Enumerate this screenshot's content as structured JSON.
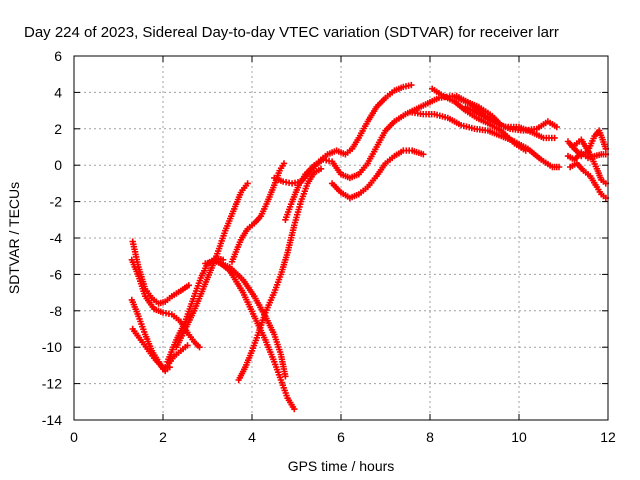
{
  "chart_data": {
    "type": "scatter",
    "title": "Day 224 of 2023, Sidereal Day-to-day VTEC variation (SDTVAR) for receiver larr",
    "xlabel": "GPS time / hours",
    "ylabel": "SDTVAR / TECUs",
    "xlim": [
      0,
      12
    ],
    "ylim": [
      -14,
      6
    ],
    "x_ticks": [
      "0",
      "2",
      "4",
      "6",
      "8",
      "10",
      "12"
    ],
    "y_ticks": [
      "6",
      "4",
      "2",
      "0",
      "-2",
      "-4",
      "-6",
      "-8",
      "-10",
      "-12",
      "-14"
    ],
    "x_tick_values": [
      0,
      2,
      4,
      6,
      8,
      10,
      12
    ],
    "y_tick_values": [
      6,
      4,
      2,
      0,
      -2,
      -4,
      -6,
      -8,
      -10,
      -12,
      -14
    ],
    "grid": true,
    "marker": "+",
    "color": "#ff0000",
    "series": [
      {
        "points": [
          [
            1.32,
            -4.2
          ],
          [
            1.45,
            -5.6
          ],
          [
            1.6,
            -6.8
          ],
          [
            1.75,
            -7.3
          ],
          [
            1.9,
            -7.6
          ],
          [
            2.05,
            -7.5
          ],
          [
            2.2,
            -7.2
          ],
          [
            2.4,
            -6.9
          ],
          [
            2.58,
            -6.6
          ]
        ]
      },
      {
        "points": [
          [
            1.3,
            -5.2
          ],
          [
            1.45,
            -6.1
          ],
          [
            1.6,
            -7.2
          ],
          [
            1.8,
            -7.9
          ],
          [
            2.0,
            -8.1
          ],
          [
            2.2,
            -8.2
          ],
          [
            2.4,
            -8.6
          ],
          [
            2.55,
            -9.2
          ],
          [
            2.7,
            -9.7
          ],
          [
            2.82,
            -10.0
          ]
        ]
      },
      {
        "points": [
          [
            1.3,
            -7.4
          ],
          [
            1.45,
            -8.3
          ],
          [
            1.6,
            -9.3
          ],
          [
            1.75,
            -10.2
          ],
          [
            1.9,
            -10.8
          ],
          [
            2.0,
            -11.2
          ],
          [
            2.1,
            -11.0
          ],
          [
            2.25,
            -10.5
          ],
          [
            2.4,
            -10.2
          ],
          [
            2.55,
            -9.9
          ]
        ]
      },
      {
        "points": [
          [
            1.32,
            -9.0
          ],
          [
            1.5,
            -9.6
          ],
          [
            1.65,
            -10.1
          ],
          [
            1.8,
            -10.6
          ],
          [
            1.95,
            -11.0
          ],
          [
            2.05,
            -11.3
          ],
          [
            2.15,
            -11.1
          ]
        ]
      },
      {
        "points": [
          [
            2.1,
            -10.8
          ],
          [
            2.3,
            -9.6
          ],
          [
            2.5,
            -8.6
          ],
          [
            2.7,
            -7.2
          ],
          [
            2.85,
            -6.2
          ],
          [
            3.0,
            -5.4
          ],
          [
            3.2,
            -5.1
          ],
          [
            3.35,
            -5.2
          ]
        ]
      },
      {
        "points": [
          [
            2.3,
            -10.0
          ],
          [
            2.5,
            -9.0
          ],
          [
            2.7,
            -8.0
          ],
          [
            2.9,
            -6.8
          ],
          [
            3.05,
            -5.9
          ],
          [
            3.2,
            -5.0
          ],
          [
            3.4,
            -3.6
          ],
          [
            3.6,
            -2.4
          ],
          [
            3.75,
            -1.5
          ],
          [
            3.9,
            -1.0
          ]
        ]
      },
      {
        "points": [
          [
            2.95,
            -5.4
          ],
          [
            3.2,
            -5.3
          ],
          [
            3.5,
            -5.6
          ],
          [
            3.8,
            -6.3
          ],
          [
            4.05,
            -7.2
          ],
          [
            4.3,
            -8.3
          ],
          [
            4.5,
            -9.3
          ],
          [
            4.65,
            -10.4
          ],
          [
            4.75,
            -11.6
          ]
        ]
      },
      {
        "points": [
          [
            3.25,
            -5.3
          ],
          [
            3.5,
            -5.8
          ],
          [
            3.8,
            -7.0
          ],
          [
            4.05,
            -8.3
          ],
          [
            4.3,
            -9.6
          ],
          [
            4.5,
            -10.8
          ],
          [
            4.65,
            -11.8
          ],
          [
            4.8,
            -12.8
          ],
          [
            4.95,
            -13.4
          ]
        ]
      },
      {
        "points": [
          [
            3.7,
            -11.8
          ],
          [
            3.85,
            -11.1
          ],
          [
            4.0,
            -10.2
          ],
          [
            4.15,
            -9.2
          ],
          [
            4.3,
            -8.1
          ],
          [
            4.5,
            -7.0
          ],
          [
            4.65,
            -6.0
          ],
          [
            4.8,
            -4.8
          ],
          [
            4.95,
            -3.3
          ],
          [
            5.1,
            -2.0
          ],
          [
            5.25,
            -1.0
          ],
          [
            5.4,
            -0.4
          ],
          [
            5.55,
            -0.2
          ]
        ]
      },
      {
        "points": [
          [
            3.55,
            -5.3
          ],
          [
            3.75,
            -4.1
          ],
          [
            3.9,
            -3.5
          ],
          [
            4.05,
            -3.2
          ],
          [
            4.2,
            -2.8
          ],
          [
            4.35,
            -2.0
          ],
          [
            4.5,
            -1.1
          ],
          [
            4.62,
            -0.3
          ],
          [
            4.72,
            0.1
          ]
        ]
      },
      {
        "points": [
          [
            4.5,
            -0.7
          ],
          [
            4.7,
            -0.9
          ],
          [
            4.9,
            -1.0
          ],
          [
            5.1,
            -0.9
          ],
          [
            5.3,
            -0.4
          ],
          [
            5.5,
            0.2
          ],
          [
            5.7,
            0.6
          ],
          [
            5.9,
            0.8
          ],
          [
            6.1,
            0.6
          ],
          [
            6.25,
            0.9
          ],
          [
            6.4,
            1.5
          ],
          [
            6.6,
            2.4
          ],
          [
            6.8,
            3.2
          ],
          [
            7.0,
            3.7
          ],
          [
            7.2,
            4.1
          ],
          [
            7.4,
            4.3
          ],
          [
            7.58,
            4.4
          ]
        ]
      },
      {
        "points": [
          [
            4.75,
            -3.0
          ],
          [
            4.9,
            -2.0
          ],
          [
            5.05,
            -1.1
          ],
          [
            5.2,
            -0.5
          ],
          [
            5.4,
            0.0
          ],
          [
            5.6,
            0.3
          ],
          [
            5.8,
            0.2
          ],
          [
            6.0,
            -0.5
          ],
          [
            6.2,
            -0.7
          ],
          [
            6.4,
            -0.5
          ],
          [
            6.6,
            0.1
          ],
          [
            6.8,
            1.0
          ],
          [
            7.0,
            1.9
          ],
          [
            7.2,
            2.4
          ],
          [
            7.45,
            2.8
          ],
          [
            7.7,
            3.1
          ],
          [
            7.95,
            3.4
          ],
          [
            8.2,
            3.7
          ],
          [
            8.5,
            3.8
          ],
          [
            8.8,
            3.5
          ],
          [
            9.1,
            3.2
          ],
          [
            9.4,
            2.7
          ],
          [
            9.6,
            2.2
          ]
        ]
      },
      {
        "points": [
          [
            5.8,
            -1.0
          ],
          [
            6.0,
            -1.5
          ],
          [
            6.2,
            -1.8
          ],
          [
            6.4,
            -1.6
          ],
          [
            6.6,
            -1.2
          ],
          [
            6.8,
            -0.6
          ],
          [
            7.0,
            0.1
          ],
          [
            7.2,
            0.5
          ],
          [
            7.4,
            0.8
          ],
          [
            7.6,
            0.8
          ],
          [
            7.85,
            0.6
          ]
        ]
      },
      {
        "points": [
          [
            7.6,
            2.9
          ],
          [
            7.85,
            2.8
          ],
          [
            8.1,
            2.8
          ],
          [
            8.4,
            2.6
          ],
          [
            8.7,
            2.2
          ],
          [
            9.0,
            2.0
          ],
          [
            9.3,
            1.9
          ],
          [
            9.6,
            1.6
          ],
          [
            9.9,
            1.3
          ],
          [
            10.2,
            0.9
          ],
          [
            10.5,
            0.3
          ],
          [
            10.75,
            -0.1
          ],
          [
            10.9,
            -0.1
          ]
        ]
      },
      {
        "points": [
          [
            8.05,
            4.2
          ],
          [
            8.3,
            3.8
          ],
          [
            8.55,
            3.5
          ],
          [
            8.8,
            3.0
          ],
          [
            9.05,
            2.6
          ],
          [
            9.3,
            2.3
          ],
          [
            9.6,
            1.9
          ],
          [
            9.9,
            1.2
          ],
          [
            10.15,
            0.8
          ]
        ]
      },
      {
        "points": [
          [
            8.6,
            3.8
          ],
          [
            8.9,
            3.4
          ],
          [
            9.2,
            2.8
          ],
          [
            9.5,
            2.3
          ],
          [
            9.8,
            2.0
          ],
          [
            10.1,
            1.9
          ],
          [
            10.4,
            2.0
          ],
          [
            10.65,
            2.4
          ],
          [
            10.85,
            2.1
          ]
        ]
      },
      {
        "points": [
          [
            8.8,
            3.2
          ],
          [
            9.1,
            2.8
          ],
          [
            9.4,
            2.4
          ],
          [
            9.7,
            2.1
          ],
          [
            10.0,
            2.1
          ],
          [
            10.3,
            1.8
          ],
          [
            10.55,
            1.5
          ],
          [
            10.8,
            1.5
          ]
        ]
      },
      {
        "points": [
          [
            11.1,
            1.3
          ],
          [
            11.25,
            0.9
          ],
          [
            11.4,
            0.5
          ],
          [
            11.55,
            0.8
          ],
          [
            11.7,
            1.6
          ],
          [
            11.8,
            1.9
          ],
          [
            11.88,
            1.4
          ],
          [
            11.95,
            0.9
          ]
        ]
      },
      {
        "points": [
          [
            11.1,
            0.5
          ],
          [
            11.25,
            0.3
          ],
          [
            11.4,
            0.7
          ],
          [
            11.55,
            0.4
          ],
          [
            11.7,
            0.5
          ],
          [
            11.85,
            0.6
          ],
          [
            11.95,
            0.6
          ]
        ]
      },
      {
        "points": [
          [
            11.15,
            -0.1
          ],
          [
            11.3,
            0.1
          ],
          [
            11.45,
            -0.3
          ],
          [
            11.6,
            -0.6
          ],
          [
            11.75,
            -1.2
          ],
          [
            11.85,
            -1.6
          ],
          [
            11.95,
            -1.8
          ]
        ]
      },
      {
        "points": [
          [
            11.2,
            1.0
          ],
          [
            11.4,
            1.4
          ],
          [
            11.6,
            0.6
          ],
          [
            11.75,
            -0.2
          ],
          [
            11.85,
            -0.8
          ],
          [
            11.95,
            -1.0
          ]
        ]
      }
    ]
  }
}
